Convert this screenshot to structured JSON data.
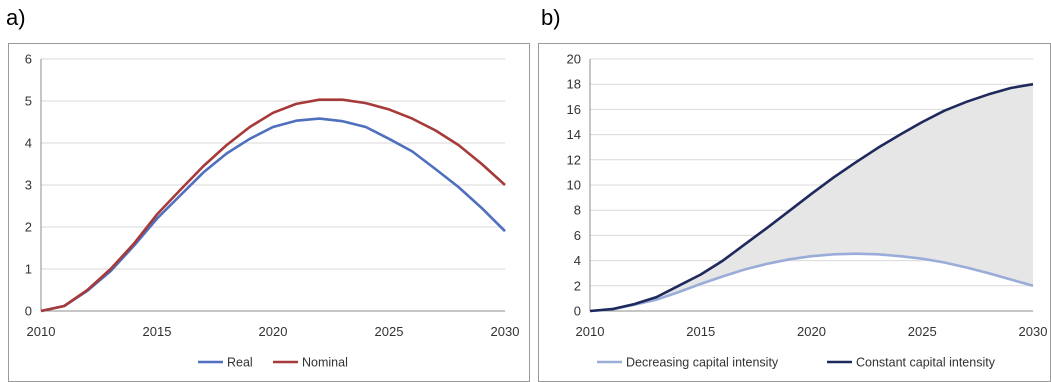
{
  "panels": {
    "a_label": "a)",
    "b_label": "b)"
  },
  "chart_data": [
    {
      "type": "line",
      "x": [
        2010,
        2011,
        2012,
        2013,
        2014,
        2015,
        2016,
        2017,
        2018,
        2019,
        2020,
        2021,
        2022,
        2023,
        2024,
        2025,
        2026,
        2027,
        2028,
        2029,
        2030
      ],
      "xticks": [
        2010,
        2015,
        2020,
        2025,
        2030
      ],
      "yticks": [
        0,
        1,
        2,
        3,
        4,
        5,
        6
      ],
      "ylim": [
        0,
        6
      ],
      "xlim": [
        2010,
        2030
      ],
      "grid": true,
      "legend_position": "bottom",
      "series": [
        {
          "name": "Real",
          "color": "#4f6fbf",
          "values": [
            0,
            0.12,
            0.48,
            0.95,
            1.55,
            2.2,
            2.75,
            3.3,
            3.75,
            4.1,
            4.38,
            4.53,
            4.58,
            4.52,
            4.38,
            4.1,
            3.8,
            3.38,
            2.95,
            2.45,
            1.9
          ]
        },
        {
          "name": "Nominal",
          "color": "#a63a3a",
          "values": [
            0,
            0.12,
            0.5,
            1.0,
            1.6,
            2.3,
            2.88,
            3.45,
            3.95,
            4.38,
            4.72,
            4.93,
            5.03,
            5.03,
            4.95,
            4.8,
            4.58,
            4.3,
            3.95,
            3.5,
            3.0
          ]
        }
      ]
    },
    {
      "type": "area",
      "x": [
        2010,
        2011,
        2012,
        2013,
        2014,
        2015,
        2016,
        2017,
        2018,
        2019,
        2020,
        2021,
        2022,
        2023,
        2024,
        2025,
        2026,
        2027,
        2028,
        2029,
        2030
      ],
      "xticks": [
        2010,
        2015,
        2020,
        2025,
        2030
      ],
      "yticks": [
        0,
        2,
        4,
        6,
        8,
        10,
        12,
        14,
        16,
        18,
        20
      ],
      "ylim": [
        0,
        20
      ],
      "xlim": [
        2010,
        2030
      ],
      "grid": true,
      "legend_position": "bottom",
      "fill_between": {
        "lower": "Decreasing capital intensity",
        "upper": "Constant capital intensity",
        "color": "#e6e6e6"
      },
      "series": [
        {
          "name": "Decreasing capital intensity",
          "color": "#9aacd8",
          "values": [
            0,
            0.12,
            0.5,
            0.9,
            1.5,
            2.15,
            2.75,
            3.3,
            3.75,
            4.1,
            4.35,
            4.5,
            4.55,
            4.5,
            4.35,
            4.15,
            3.85,
            3.45,
            3.0,
            2.5,
            2.0
          ]
        },
        {
          "name": "Constant capital intensity",
          "color": "#1f2a5c",
          "values": [
            0,
            0.15,
            0.55,
            1.1,
            2.0,
            2.9,
            4.0,
            5.3,
            6.6,
            7.95,
            9.3,
            10.6,
            11.8,
            12.95,
            14.0,
            15.0,
            15.9,
            16.6,
            17.2,
            17.7,
            18.0
          ]
        }
      ]
    }
  ]
}
